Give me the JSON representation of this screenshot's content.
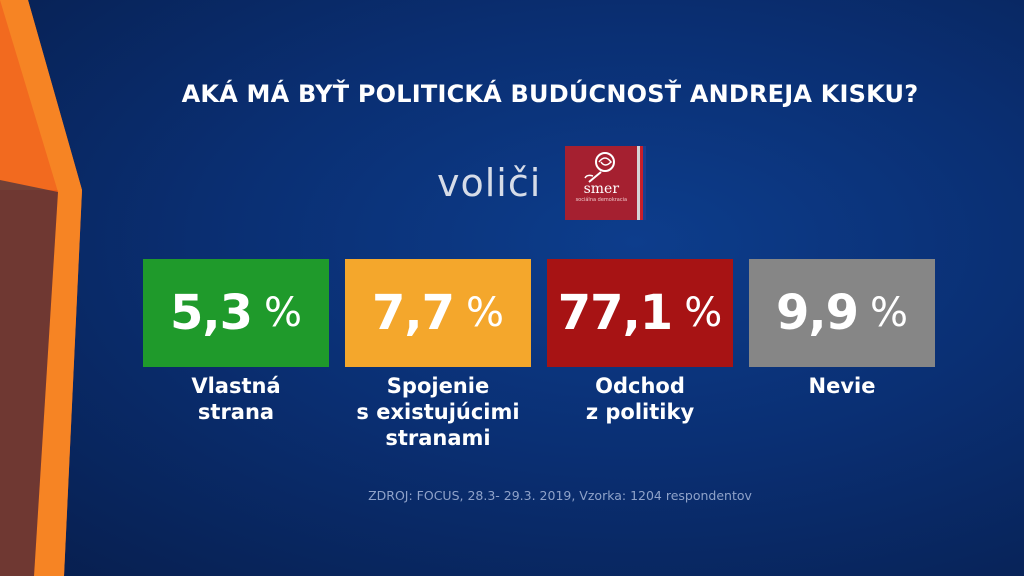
{
  "title": "AKÁ MÁ BYŤ POLITICKÁ BUDÚCNOSŤ ANDREJA KISKU?",
  "group": {
    "label": "voliči",
    "logo_text": "smer",
    "logo_subtext": "sociálna demokracia"
  },
  "chart_data": {
    "type": "bar",
    "title": "AKÁ MÁ BYŤ POLITICKÁ BUDÚCNOSŤ ANDREJA KISKU?",
    "categories": [
      "Vlastná strana",
      "Spojenie s existujúcimi stranami",
      "Odchod z politiky",
      "Nevie"
    ],
    "values": [
      5.3,
      7.7,
      77.1,
      9.9
    ],
    "value_labels": [
      "5,3",
      "7,7",
      "77,1",
      "9,9"
    ],
    "unit": "%",
    "label_lines": [
      [
        "Vlastná",
        "strana"
      ],
      [
        "Spojenie",
        "s existujúcimi",
        "stranami"
      ],
      [
        "Odchod",
        "z politiky"
      ],
      [
        "Nevie"
      ]
    ],
    "colors": [
      "#1f9a2b",
      "#f4a72c",
      "#a71314",
      "#868686"
    ]
  },
  "source": "ZDROJ: FOCUS, 28.3- 29.3. 2019, Vzorka: 1204 respondentov",
  "colors": {
    "background": "#0a2f73",
    "accent_orange": "#f26522"
  }
}
